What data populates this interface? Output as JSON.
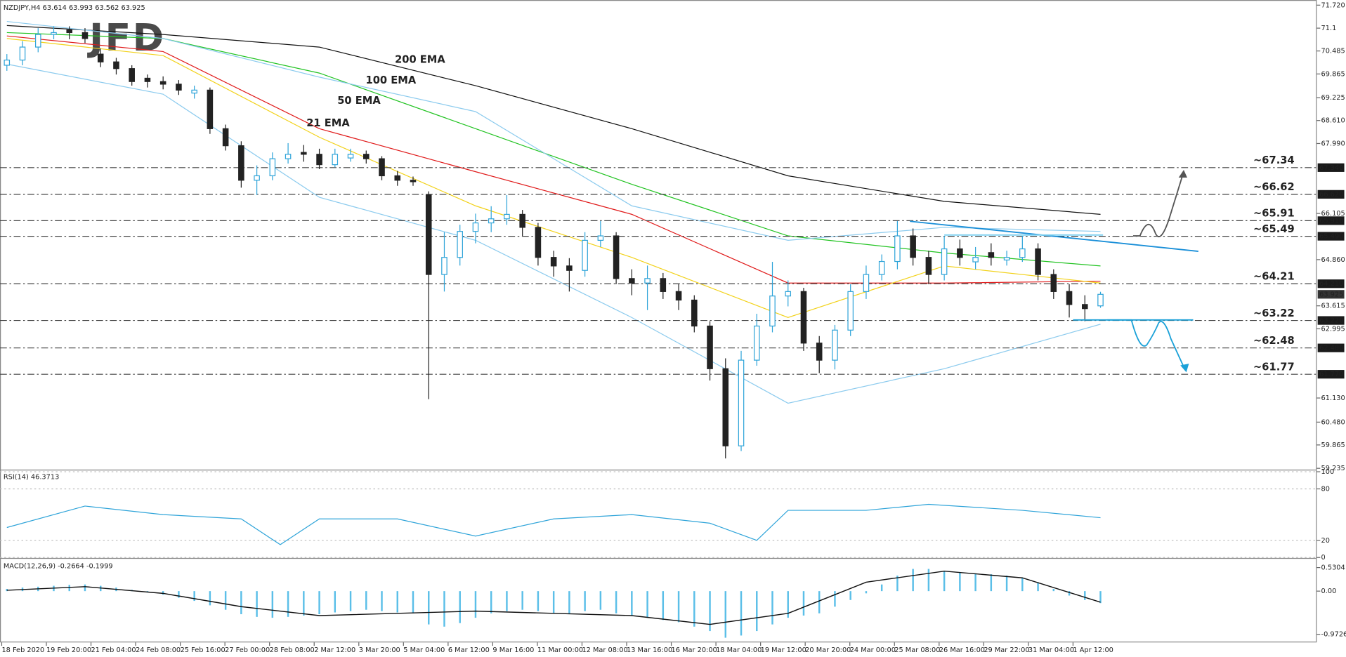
{
  "chart_data": [
    {
      "type": "candlestick",
      "title": "NZDJPY,H4  63.614 63.993 63.562 63.925",
      "logo": "JFD",
      "ylim": [
        59.235,
        71.72
      ],
      "yticks": [
        {
          "value": 71.72,
          "label": "71.720"
        },
        71.1,
        70.485,
        69.865,
        69.225,
        {
          "value": 68.61,
          "label": "68.610"
        },
        {
          "value": 67.99,
          "label": "67.990"
        },
        66.105,
        {
          "value": 64.86,
          "label": "64.860"
        },
        63.615,
        62.995,
        {
          "value": 61.13,
          "label": "61.130"
        },
        {
          "value": 60.48,
          "label": "60.480"
        },
        59.865,
        59.235
      ],
      "up_color": "#2fa4d9",
      "down_color": "#222222",
      "candles": [
        [
          70.1,
          70.4,
          69.95,
          70.24
        ],
        [
          70.24,
          70.75,
          70.1,
          70.59
        ],
        [
          70.59,
          71.1,
          70.45,
          70.93
        ],
        [
          70.93,
          71.15,
          70.8,
          70.98
        ],
        [
          71.05,
          71.15,
          70.8,
          70.98
        ],
        [
          70.98,
          71.1,
          70.7,
          70.82
        ],
        [
          70.4,
          70.55,
          70.05,
          70.19
        ],
        [
          70.19,
          70.3,
          69.85,
          70.01
        ],
        [
          70.01,
          70.1,
          69.55,
          69.66
        ],
        [
          69.75,
          69.85,
          69.5,
          69.66
        ],
        [
          69.66,
          69.8,
          69.45,
          69.59
        ],
        [
          69.59,
          69.7,
          69.3,
          69.43
        ],
        [
          69.35,
          69.55,
          69.2,
          69.43
        ],
        [
          69.43,
          69.5,
          68.25,
          68.39
        ],
        [
          68.39,
          68.5,
          67.8,
          67.93
        ],
        [
          67.93,
          68.05,
          66.8,
          67.0
        ],
        [
          67.0,
          67.4,
          66.6,
          67.12
        ],
        [
          67.12,
          67.75,
          67.0,
          67.58
        ],
        [
          67.58,
          68.0,
          67.45,
          67.7
        ],
        [
          67.75,
          67.95,
          67.5,
          67.7
        ],
        [
          67.7,
          67.85,
          67.3,
          67.42
        ],
        [
          67.42,
          67.85,
          67.35,
          67.7
        ],
        [
          67.6,
          67.85,
          67.5,
          67.7
        ],
        [
          67.7,
          67.8,
          67.45,
          67.58
        ],
        [
          67.58,
          67.65,
          67.0,
          67.12
        ],
        [
          67.12,
          67.25,
          66.85,
          67.0
        ],
        [
          67.0,
          67.1,
          66.85,
          66.96
        ],
        [
          66.6,
          66.7,
          61.1,
          64.46
        ],
        [
          64.46,
          65.6,
          64.0,
          64.92
        ],
        [
          64.92,
          65.8,
          64.7,
          65.62
        ],
        [
          65.62,
          66.1,
          65.3,
          65.85
        ],
        [
          65.85,
          66.3,
          65.6,
          65.96
        ],
        [
          65.96,
          66.6,
          65.8,
          66.08
        ],
        [
          66.08,
          66.2,
          65.5,
          65.73
        ],
        [
          65.73,
          65.85,
          64.7,
          64.92
        ],
        [
          64.92,
          65.1,
          64.4,
          64.69
        ],
        [
          64.69,
          64.9,
          64.0,
          64.57
        ],
        [
          64.57,
          65.6,
          64.4,
          65.38
        ],
        [
          65.38,
          65.9,
          65.2,
          65.5
        ],
        [
          65.5,
          65.6,
          64.2,
          64.35
        ],
        [
          64.35,
          64.6,
          63.9,
          64.23
        ],
        [
          64.23,
          64.7,
          63.5,
          64.35
        ],
        [
          64.35,
          64.5,
          63.8,
          64.0
        ],
        [
          64.0,
          64.2,
          63.5,
          63.77
        ],
        [
          63.77,
          63.9,
          62.9,
          63.07
        ],
        [
          63.07,
          63.2,
          61.6,
          61.92
        ],
        [
          61.92,
          62.2,
          59.5,
          59.84
        ],
        [
          59.84,
          62.4,
          59.7,
          62.15
        ],
        [
          62.15,
          63.4,
          62.0,
          63.07
        ],
        [
          63.07,
          64.8,
          62.9,
          63.88
        ],
        [
          63.88,
          64.3,
          63.6,
          64.0
        ],
        [
          64.0,
          64.1,
          62.4,
          62.61
        ],
        [
          62.61,
          62.8,
          61.8,
          62.15
        ],
        [
          62.15,
          63.1,
          61.9,
          62.96
        ],
        [
          62.96,
          64.2,
          62.8,
          64.0
        ],
        [
          64.0,
          64.7,
          63.8,
          64.46
        ],
        [
          64.46,
          65.0,
          64.3,
          64.81
        ],
        [
          64.81,
          65.9,
          64.6,
          65.5
        ],
        [
          65.5,
          65.7,
          64.7,
          64.92
        ],
        [
          64.92,
          65.1,
          64.2,
          64.46
        ],
        [
          64.46,
          65.5,
          64.3,
          65.15
        ],
        [
          65.15,
          65.4,
          64.7,
          64.92
        ],
        [
          64.8,
          65.2,
          64.6,
          64.92
        ],
        [
          65.05,
          65.3,
          64.7,
          64.92
        ],
        [
          64.85,
          65.1,
          64.7,
          64.92
        ],
        [
          64.92,
          65.5,
          64.8,
          65.15
        ],
        [
          65.15,
          65.3,
          64.3,
          64.46
        ],
        [
          64.46,
          64.6,
          63.8,
          64.0
        ],
        [
          64.0,
          64.2,
          63.3,
          63.65
        ],
        [
          63.65,
          63.9,
          63.2,
          63.54
        ],
        [
          63.614,
          63.993,
          63.562,
          63.925
        ]
      ],
      "series": [
        {
          "name": "200 EMA",
          "color": "#111111",
          "x": [
            0,
            10,
            20,
            30,
            40,
            50,
            60,
            70
          ],
          "values": [
            71.17,
            70.93,
            70.59,
            69.55,
            68.39,
            67.12,
            66.43,
            66.08
          ]
        },
        {
          "name": "100 EMA",
          "color": "#22c322",
          "x": [
            0,
            10,
            20,
            30,
            40,
            50,
            60,
            70
          ],
          "values": [
            70.98,
            70.82,
            69.89,
            68.39,
            66.89,
            65.5,
            65.04,
            64.69
          ]
        },
        {
          "name": "50 EMA",
          "color": "#e01b1b",
          "x": [
            0,
            10,
            20,
            30,
            40,
            50,
            60,
            70
          ],
          "values": [
            70.89,
            70.47,
            68.39,
            67.23,
            66.08,
            64.23,
            64.23,
            64.28
          ]
        },
        {
          "name": "21 EMA",
          "color": "#f2d21b",
          "x": [
            0,
            10,
            20,
            30,
            40,
            50,
            60,
            70
          ],
          "values": [
            70.82,
            70.36,
            68.16,
            66.31,
            64.92,
            63.3,
            64.69,
            64.23
          ]
        },
        {
          "color": "#8ccbee",
          "x": [
            0,
            10,
            20,
            30,
            40,
            50,
            60,
            70
          ],
          "values": [
            71.28,
            70.82,
            69.78,
            68.85,
            66.31,
            65.38,
            65.73,
            65.62
          ]
        },
        {
          "color": "#8ccbee",
          "x": [
            0,
            10,
            20,
            30,
            40,
            50,
            60,
            70
          ],
          "values": [
            70.13,
            69.32,
            66.54,
            65.38,
            63.3,
            60.99,
            61.92,
            63.12
          ]
        }
      ],
      "levels": [
        {
          "value": 67.34,
          "label": "~67.34",
          "axis_label": "67.340",
          "color": "#555555"
        },
        {
          "value": 66.62,
          "label": "~66.62",
          "axis_label": "66.620",
          "color": "#555555"
        },
        {
          "value": 65.91,
          "label": "~65.91",
          "axis_label": "65.910",
          "color": "#555555"
        },
        {
          "value": 65.49,
          "label": "~65.49",
          "axis_label": "65.490",
          "color": "#555555"
        },
        {
          "value": 64.21,
          "label": "~64.21",
          "axis_label": "64.210",
          "color": "#1ba1d8"
        },
        {
          "value": 63.22,
          "label": "~63.22",
          "axis_label": "63.220",
          "color": "#1ba1d8"
        },
        {
          "value": 62.48,
          "label": "~62.48",
          "axis_label": "62.480",
          "color": "#1ba1d8"
        },
        {
          "value": 61.77,
          "label": "~61.77",
          "axis_label": "61.770",
          "color": "#1ba1d8"
        }
      ],
      "last_price": {
        "value": 63.925,
        "label": "63.925"
      },
      "x_labels": [
        "18 Feb 2020",
        "19 Feb 20:00",
        "21 Feb 04:00",
        "24 Feb 08:00",
        "25 Feb 16:00",
        "27 Feb 00:00",
        "28 Feb 08:00",
        "2 Mar 12:00",
        "3 Mar 20:00",
        "5 Mar 04:00",
        "6 Mar 12:00",
        "9 Mar 16:00",
        "11 Mar 00:00",
        "12 Mar 08:00",
        "13 Mar 16:00",
        "16 Mar 20:00",
        "18 Mar 04:00",
        "19 Mar 12:00",
        "20 Mar 20:00",
        "24 Mar 00:00",
        "25 Mar 08:00",
        "26 Mar 16:00",
        "29 Mar 22:00",
        "31 Mar 04:00",
        "1 Apr 12:00"
      ]
    },
    {
      "type": "line",
      "title": "RSI(14) 46.3713",
      "ylim": [
        0,
        100
      ],
      "yticks": [
        100,
        80,
        20,
        0
      ],
      "series": [
        {
          "color": "#2fa4d9",
          "x": [
            0,
            5,
            10,
            15,
            17.5,
            20,
            25,
            30,
            35,
            40,
            45,
            48,
            50,
            55,
            59,
            65,
            70
          ],
          "values": [
            35,
            60,
            50,
            45,
            15,
            45,
            45,
            25,
            45,
            50,
            40,
            20,
            55,
            55,
            62,
            55,
            46.37
          ]
        }
      ]
    },
    {
      "type": "macd",
      "title": "MACD(12,26,9) -0.2664 -0.1999",
      "ylim": [
        -1.136,
        0.68
      ],
      "yticks": [
        0.5304,
        {
          "value": 0,
          "label": "0.00"
        },
        -0.9726
      ],
      "histogram": {
        "color": "#5bbfe8",
        "values": [
          0.05,
          0.08,
          0.1,
          0.12,
          0.14,
          0.15,
          0.12,
          0.08,
          0.03,
          -0.02,
          -0.08,
          -0.15,
          -0.22,
          -0.32,
          -0.42,
          -0.52,
          -0.58,
          -0.6,
          -0.58,
          -0.55,
          -0.52,
          -0.48,
          -0.45,
          -0.42,
          -0.45,
          -0.48,
          -0.5,
          -0.75,
          -0.8,
          -0.72,
          -0.6,
          -0.5,
          -0.45,
          -0.42,
          -0.45,
          -0.5,
          -0.52,
          -0.45,
          -0.42,
          -0.5,
          -0.55,
          -0.6,
          -0.65,
          -0.7,
          -0.8,
          -0.9,
          -1.05,
          -1.0,
          -0.9,
          -0.75,
          -0.6,
          -0.55,
          -0.5,
          -0.35,
          -0.2,
          -0.05,
          0.15,
          0.35,
          0.5,
          0.5,
          0.45,
          0.42,
          0.4,
          0.38,
          0.35,
          0.3,
          0.2,
          0.05,
          -0.1,
          -0.2,
          -0.27
        ]
      },
      "signal": {
        "color": "#111111",
        "x": [
          0,
          5,
          10,
          15,
          20,
          25,
          30,
          35,
          40,
          45,
          50,
          55,
          60,
          65,
          70
        ],
        "values": [
          0.02,
          0.1,
          -0.05,
          -0.35,
          -0.55,
          -0.5,
          -0.45,
          -0.5,
          -0.55,
          -0.75,
          -0.5,
          0.2,
          0.45,
          0.3,
          -0.25
        ]
      }
    }
  ]
}
